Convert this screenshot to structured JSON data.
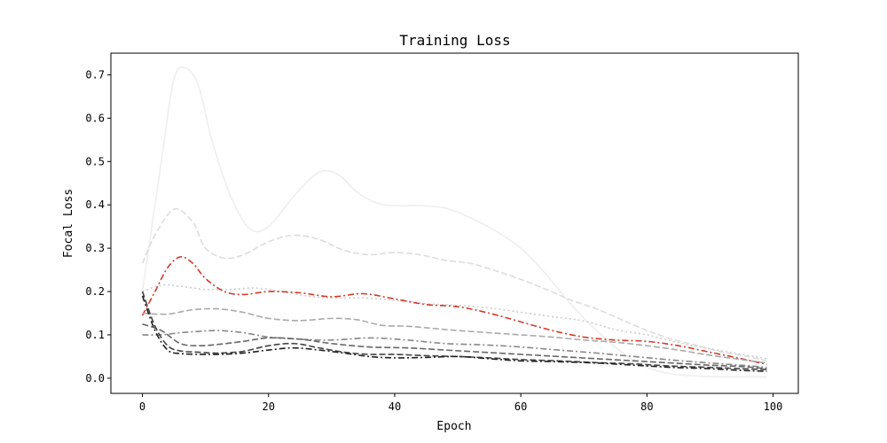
{
  "chart_data": {
    "type": "line",
    "title": "Training Loss",
    "xlabel": "Epoch",
    "ylabel": "Focal Loss",
    "xlim": [
      -5,
      104
    ],
    "ylim": [
      -0.035,
      0.75
    ],
    "xticks": [
      0,
      20,
      40,
      60,
      80,
      100
    ],
    "xtick_labels": [
      "0",
      "20",
      "40",
      "60",
      "80",
      "100"
    ],
    "yticks": [
      0.0,
      0.1,
      0.2,
      0.3,
      0.4,
      0.5,
      0.6,
      0.7
    ],
    "ytick_labels": [
      "0.0",
      "0.1",
      "0.2",
      "0.3",
      "0.4",
      "0.5",
      "0.6",
      "0.7"
    ],
    "grid": false,
    "legend": false,
    "series": [
      {
        "color": "#eeeeee",
        "dash": "solid",
        "x": [
          0,
          3,
          5,
          7,
          9,
          11,
          14,
          17,
          20,
          24,
          28,
          31,
          34,
          37,
          40,
          44,
          48,
          52,
          56,
          60,
          64,
          68,
          72,
          76,
          80,
          84,
          88,
          92,
          96,
          99
        ],
        "y": [
          0.2,
          0.5,
          0.69,
          0.715,
          0.67,
          0.55,
          0.42,
          0.345,
          0.35,
          0.42,
          0.475,
          0.47,
          0.43,
          0.405,
          0.398,
          0.398,
          0.393,
          0.37,
          0.34,
          0.3,
          0.24,
          0.17,
          0.11,
          0.06,
          0.025,
          0.01,
          0.005,
          0.003,
          0.003,
          0.003
        ]
      },
      {
        "color": "#dddddd",
        "dash": "dashed",
        "x": [
          0,
          2,
          5,
          8,
          10,
          13,
          16,
          20,
          24,
          28,
          32,
          36,
          40,
          44,
          48,
          52,
          56,
          60,
          64,
          68,
          72,
          76,
          80,
          84,
          88,
          92,
          96,
          99
        ],
        "y": [
          0.265,
          0.33,
          0.39,
          0.36,
          0.3,
          0.277,
          0.285,
          0.315,
          0.33,
          0.32,
          0.295,
          0.285,
          0.29,
          0.285,
          0.272,
          0.265,
          0.248,
          0.228,
          0.205,
          0.18,
          0.16,
          0.135,
          0.11,
          0.09,
          0.075,
          0.06,
          0.05,
          0.04
        ]
      },
      {
        "color": "#cccccc",
        "dash": "dotted",
        "x": [
          0,
          3,
          6,
          10,
          14,
          18,
          22,
          26,
          30,
          35,
          40,
          45,
          50,
          55,
          60,
          65,
          70,
          75,
          80,
          85,
          90,
          95,
          99
        ],
        "y": [
          0.2,
          0.215,
          0.212,
          0.205,
          0.205,
          0.208,
          0.2,
          0.19,
          0.185,
          0.185,
          0.18,
          0.172,
          0.168,
          0.162,
          0.152,
          0.142,
          0.132,
          0.112,
          0.1,
          0.082,
          0.068,
          0.055,
          0.045
        ]
      },
      {
        "color": "#d13a2a",
        "dash": "dashdot",
        "x": [
          0,
          2,
          4,
          6,
          8,
          10,
          13,
          16,
          20,
          25,
          30,
          35,
          40,
          45,
          50,
          55,
          60,
          65,
          70,
          75,
          80,
          85,
          90,
          95,
          99
        ],
        "y": [
          0.145,
          0.2,
          0.255,
          0.28,
          0.265,
          0.23,
          0.2,
          0.193,
          0.2,
          0.197,
          0.188,
          0.195,
          0.183,
          0.17,
          0.165,
          0.15,
          0.13,
          0.11,
          0.095,
          0.088,
          0.085,
          0.075,
          0.06,
          0.045,
          0.032
        ]
      },
      {
        "color": "#aaaaaa",
        "dash": "dashed",
        "x": [
          0,
          4,
          8,
          12,
          16,
          20,
          25,
          30,
          34,
          38,
          42,
          46,
          50,
          55,
          60,
          65,
          70,
          75,
          80,
          85,
          90,
          95,
          99
        ],
        "y": [
          0.15,
          0.148,
          0.158,
          0.16,
          0.152,
          0.138,
          0.133,
          0.138,
          0.135,
          0.122,
          0.12,
          0.115,
          0.11,
          0.105,
          0.1,
          0.095,
          0.088,
          0.083,
          0.075,
          0.065,
          0.053,
          0.043,
          0.035
        ]
      },
      {
        "color": "#888888",
        "dash": "dashdot",
        "x": [
          0,
          3,
          6,
          9,
          12,
          16,
          20,
          25,
          30,
          36,
          42,
          48,
          54,
          60,
          66,
          72,
          78,
          84,
          90,
          95,
          99
        ],
        "y": [
          0.1,
          0.1,
          0.105,
          0.108,
          0.11,
          0.105,
          0.095,
          0.09,
          0.088,
          0.093,
          0.088,
          0.08,
          0.077,
          0.072,
          0.065,
          0.058,
          0.05,
          0.042,
          0.035,
          0.03,
          0.025
        ]
      },
      {
        "color": "#666666",
        "dash": "dashed",
        "x": [
          0,
          3,
          6,
          9,
          12,
          16,
          20,
          25,
          30,
          36,
          42,
          48,
          54,
          60,
          66,
          72,
          78,
          84,
          90,
          95,
          99
        ],
        "y": [
          0.125,
          0.11,
          0.08,
          0.075,
          0.078,
          0.085,
          0.093,
          0.09,
          0.08,
          0.072,
          0.07,
          0.065,
          0.06,
          0.055,
          0.05,
          0.045,
          0.04,
          0.035,
          0.03,
          0.027,
          0.022
        ]
      },
      {
        "color": "#444444",
        "dash": "dashed",
        "x": [
          0,
          2,
          4,
          6,
          9,
          12,
          16,
          20,
          24,
          28,
          32,
          36,
          40,
          45,
          50,
          55,
          60,
          66,
          72,
          78,
          84,
          90,
          95,
          99
        ],
        "y": [
          0.2,
          0.12,
          0.075,
          0.063,
          0.06,
          0.058,
          0.062,
          0.075,
          0.08,
          0.07,
          0.06,
          0.055,
          0.055,
          0.052,
          0.05,
          0.047,
          0.043,
          0.04,
          0.036,
          0.033,
          0.028,
          0.025,
          0.022,
          0.02
        ]
      },
      {
        "color": "#222222",
        "dash": "dashdot",
        "x": [
          0,
          2,
          4,
          6,
          9,
          12,
          16,
          20,
          24,
          28,
          32,
          36,
          40,
          45,
          50,
          55,
          60,
          66,
          72,
          78,
          84,
          90,
          95,
          99
        ],
        "y": [
          0.19,
          0.11,
          0.065,
          0.057,
          0.055,
          0.055,
          0.058,
          0.065,
          0.07,
          0.065,
          0.058,
          0.05,
          0.047,
          0.048,
          0.05,
          0.045,
          0.04,
          0.038,
          0.035,
          0.03,
          0.025,
          0.022,
          0.018,
          0.016
        ]
      }
    ]
  }
}
